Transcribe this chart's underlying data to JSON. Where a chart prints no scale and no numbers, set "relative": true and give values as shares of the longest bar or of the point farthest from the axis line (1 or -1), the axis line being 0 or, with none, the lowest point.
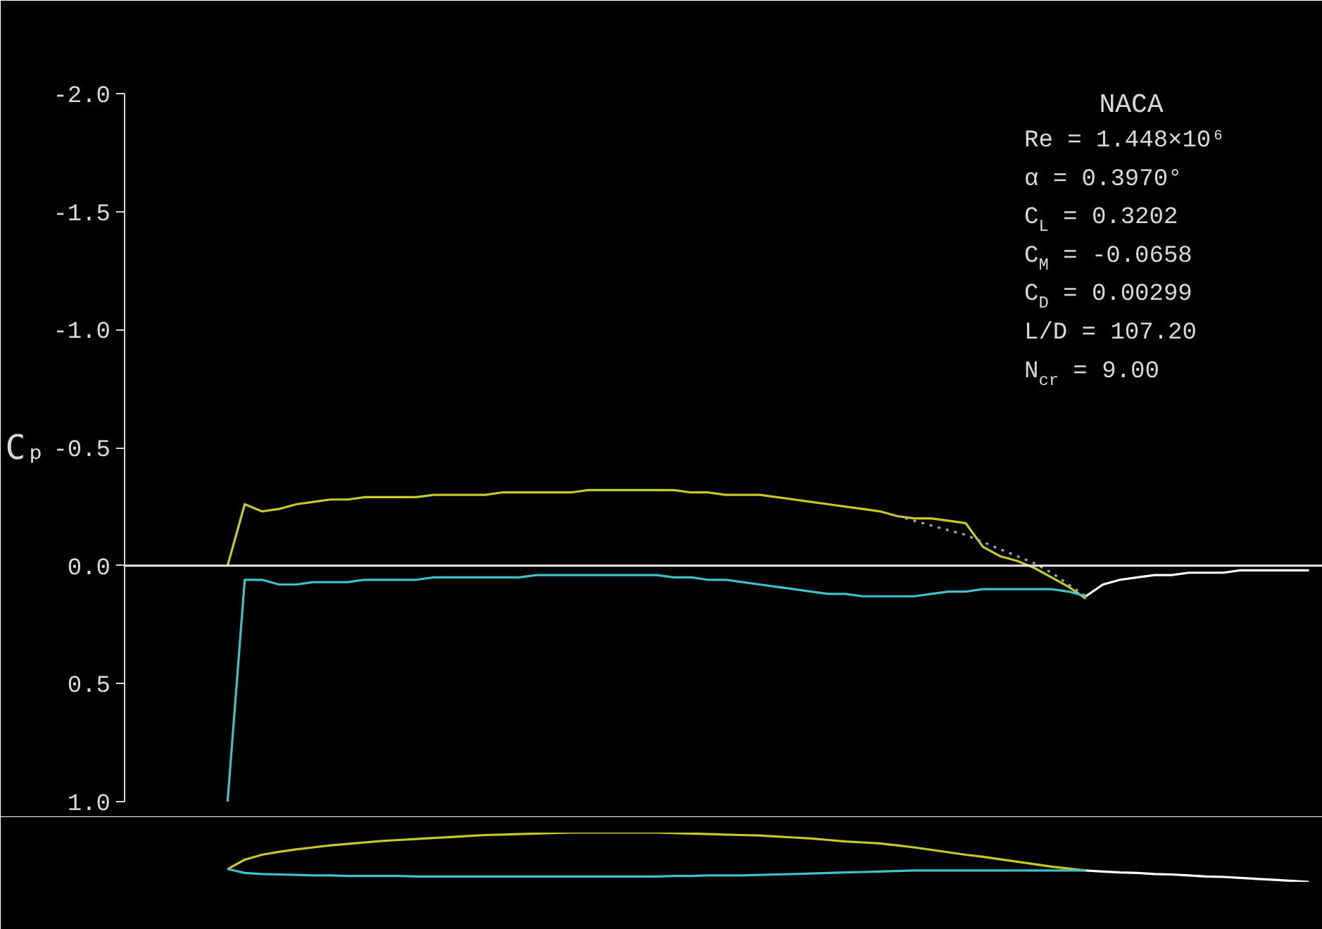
{
  "chart_data": [
    {
      "type": "line",
      "title": "NACA",
      "ylabel": "Cₚ",
      "annotations": [
        "Re = 1.448×10⁶",
        "α  = 0.3970°",
        "C$_{L}$ = 0.3202",
        "C$_{M}$ = -0.0658",
        "C$_{D}$ = 0.00299",
        "L/D = 107.20",
        "N$_{cr}$ = 9.00"
      ],
      "categories": [
        null,
        null,
        null,
        null,
        null,
        null,
        null,
        null,
        null,
        null,
        null,
        null,
        null,
        null,
        null,
        null,
        null,
        null,
        null,
        null,
        null,
        null,
        null,
        null,
        null,
        null,
        null,
        null,
        null,
        null,
        null,
        null,
        null,
        null,
        null,
        null,
        null,
        null,
        null,
        null,
        null,
        null,
        null,
        null,
        null,
        null,
        null,
        null,
        null,
        null,
        null,
        null,
        null,
        null,
        null,
        null,
        null,
        null,
        null,
        null,
        null,
        null,
        null,
        null
      ],
      "ylim": [
        1.0,
        -2.0
      ],
      "yticks": [
        {
          "value": -2.0,
          "label": "-2.0"
        },
        {
          "value": -1.5,
          "label": "-1.5"
        },
        {
          "value": -1.0,
          "label": "-1.0"
        },
        {
          "value": -0.5,
          "label": "-0.5"
        },
        {
          "value": 0.0,
          "label": "0.0"
        },
        {
          "value": 0.5,
          "label": "0.5"
        },
        {
          "value": 1.0,
          "label": "1.0"
        }
      ],
      "tick_labels": "y",
      "ref_lines": [
        {
          "axis": "y",
          "value": 0.0,
          "color": "#e8e8e8"
        }
      ],
      "series": [
        {
          "color": "#c8c828",
          "values": [
            0.0,
            -0.26,
            -0.23,
            -0.24,
            -0.26,
            -0.27,
            -0.28,
            -0.28,
            -0.29,
            -0.29,
            -0.29,
            -0.29,
            -0.3,
            -0.3,
            -0.3,
            -0.3,
            -0.31,
            -0.31,
            -0.31,
            -0.31,
            -0.31,
            -0.32,
            -0.32,
            -0.32,
            -0.32,
            -0.32,
            -0.32,
            -0.31,
            -0.31,
            -0.3,
            -0.3,
            -0.3,
            -0.29,
            -0.28,
            -0.27,
            -0.26,
            -0.25,
            -0.24,
            -0.23,
            -0.21,
            -0.2,
            -0.2,
            -0.19,
            -0.18,
            -0.08,
            -0.04,
            -0.02,
            0.01,
            0.05,
            0.09,
            0.14,
            null,
            null,
            null,
            null,
            null,
            null,
            null,
            null,
            null,
            null,
            null,
            null,
            null
          ]
        },
        {
          "color": "#40c0c8",
          "values": [
            1.0,
            0.06,
            0.06,
            0.08,
            0.08,
            0.07,
            0.07,
            0.07,
            0.06,
            0.06,
            0.06,
            0.06,
            0.05,
            0.05,
            0.05,
            0.05,
            0.05,
            0.05,
            0.04,
            0.04,
            0.04,
            0.04,
            0.04,
            0.04,
            0.04,
            0.04,
            0.05,
            0.05,
            0.06,
            0.06,
            0.07,
            0.08,
            0.09,
            0.1,
            0.11,
            0.12,
            0.12,
            0.13,
            0.13,
            0.13,
            0.13,
            0.12,
            0.11,
            0.11,
            0.1,
            0.1,
            0.1,
            0.1,
            0.1,
            0.11,
            0.13,
            null,
            null,
            null,
            null,
            null,
            null,
            null,
            null,
            null,
            null,
            null,
            null,
            null
          ]
        },
        {
          "color": "#ffffff",
          "values": [
            null,
            null,
            null,
            null,
            null,
            null,
            null,
            null,
            null,
            null,
            null,
            null,
            null,
            null,
            null,
            null,
            null,
            null,
            null,
            null,
            null,
            null,
            null,
            null,
            null,
            null,
            null,
            null,
            null,
            null,
            null,
            null,
            null,
            null,
            null,
            null,
            null,
            null,
            null,
            null,
            null,
            null,
            null,
            null,
            null,
            null,
            null,
            null,
            null,
            null,
            0.13,
            0.08,
            0.06,
            0.05,
            0.04,
            0.04,
            0.03,
            0.03,
            0.03,
            0.02,
            0.02,
            0.02,
            0.02,
            0.02
          ]
        },
        {
          "color": "#a0a0a0",
          "line_style": "dotted",
          "values": [
            null,
            null,
            null,
            null,
            null,
            null,
            null,
            null,
            null,
            null,
            null,
            null,
            null,
            null,
            null,
            null,
            null,
            null,
            null,
            null,
            null,
            null,
            null,
            null,
            null,
            null,
            null,
            null,
            null,
            null,
            null,
            null,
            null,
            null,
            null,
            null,
            null,
            null,
            null,
            -0.21,
            -0.19,
            -0.17,
            -0.15,
            -0.13,
            -0.1,
            -0.07,
            -0.04,
            -0.01,
            0.03,
            0.08,
            0.13,
            null,
            null,
            null,
            null,
            null,
            null,
            null,
            null,
            null,
            null,
            null,
            null,
            null
          ]
        }
      ]
    },
    {
      "type": "line",
      "relative": true,
      "tick_labels": false,
      "categories": [
        null,
        null,
        null,
        null,
        null,
        null,
        null,
        null,
        null,
        null,
        null,
        null,
        null,
        null,
        null,
        null,
        null,
        null,
        null,
        null,
        null,
        null,
        null,
        null,
        null,
        null,
        null,
        null,
        null,
        null,
        null,
        null,
        null,
        null,
        null,
        null,
        null,
        null,
        null,
        null,
        null,
        null,
        null,
        null,
        null,
        null,
        null,
        null,
        null,
        null,
        null,
        null,
        null,
        null,
        null,
        null,
        null,
        null,
        null,
        null,
        null,
        null,
        null,
        null
      ],
      "series": [
        {
          "color": "#c8c828",
          "values": [
            0.26,
            0.45,
            0.55,
            0.61,
            0.66,
            0.7,
            0.74,
            0.77,
            0.8,
            0.83,
            0.85,
            0.87,
            0.89,
            0.91,
            0.93,
            0.95,
            0.96,
            0.97,
            0.98,
            0.99,
            1.0,
            1.0,
            1.0,
            1.0,
            1.0,
            1.0,
            0.99,
            0.98,
            0.97,
            0.96,
            0.95,
            0.94,
            0.92,
            0.9,
            0.88,
            0.85,
            0.82,
            0.8,
            0.78,
            0.74,
            0.7,
            0.65,
            0.6,
            0.55,
            0.51,
            0.46,
            0.41,
            0.36,
            0.31,
            0.27,
            0.23,
            null,
            null,
            null,
            null,
            null,
            null,
            null,
            null,
            null,
            null,
            null,
            null,
            null
          ]
        },
        {
          "color": "#40c0c8",
          "values": [
            0.26,
            0.18,
            0.16,
            0.15,
            0.14,
            0.13,
            0.13,
            0.12,
            0.12,
            0.12,
            0.12,
            0.11,
            0.11,
            0.11,
            0.11,
            0.11,
            0.11,
            0.11,
            0.11,
            0.11,
            0.11,
            0.11,
            0.11,
            0.11,
            0.11,
            0.11,
            0.12,
            0.12,
            0.13,
            0.13,
            0.13,
            0.14,
            0.15,
            0.16,
            0.17,
            0.18,
            0.19,
            0.2,
            0.21,
            0.22,
            0.23,
            0.23,
            0.23,
            0.23,
            0.23,
            0.23,
            0.23,
            0.23,
            0.23,
            0.23,
            0.23,
            null,
            null,
            null,
            null,
            null,
            null,
            null,
            null,
            null,
            null,
            null,
            null,
            null
          ]
        },
        {
          "color": "#ffffff",
          "values": [
            null,
            null,
            null,
            null,
            null,
            null,
            null,
            null,
            null,
            null,
            null,
            null,
            null,
            null,
            null,
            null,
            null,
            null,
            null,
            null,
            null,
            null,
            null,
            null,
            null,
            null,
            null,
            null,
            null,
            null,
            null,
            null,
            null,
            null,
            null,
            null,
            null,
            null,
            null,
            null,
            null,
            null,
            null,
            null,
            null,
            null,
            null,
            null,
            null,
            null,
            0.23,
            0.21,
            0.19,
            0.18,
            0.16,
            0.15,
            0.13,
            0.11,
            0.1,
            0.08,
            0.06,
            0.04,
            0.02,
            0.0
          ]
        }
      ]
    }
  ]
}
